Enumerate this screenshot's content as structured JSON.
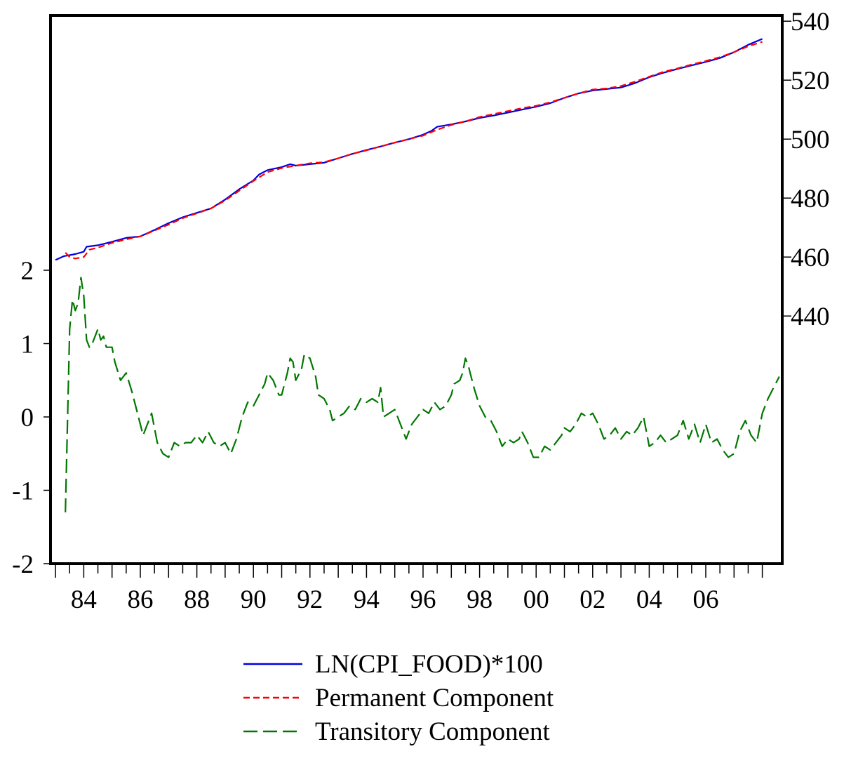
{
  "chart_data": {
    "type": "line",
    "title": "",
    "xlabel": "",
    "ylabel_left": "",
    "ylabel_right": "",
    "x_range": [
      1983.0,
      2008.0
    ],
    "x_ticks": [
      {
        "x": 1984.0,
        "label": "84"
      },
      {
        "x": 1986.0,
        "label": "86"
      },
      {
        "x": 1988.0,
        "label": "88"
      },
      {
        "x": 1990.0,
        "label": "90"
      },
      {
        "x": 1992.0,
        "label": "92"
      },
      {
        "x": 1994.0,
        "label": "94"
      },
      {
        "x": 1996.0,
        "label": "96"
      },
      {
        "x": 1998.0,
        "label": "98"
      },
      {
        "x": 2000.0,
        "label": "00"
      },
      {
        "x": 2002.0,
        "label": "02"
      },
      {
        "x": 2004.0,
        "label": "04"
      },
      {
        "x": 2006.0,
        "label": "06"
      }
    ],
    "y_left": {
      "range": [
        -2,
        5.5
      ],
      "ticks": [
        {
          "y": -2,
          "label": "-2"
        },
        {
          "y": -1,
          "label": "-1"
        },
        {
          "y": 0,
          "label": "0"
        },
        {
          "y": 1,
          "label": "1"
        },
        {
          "y": 2,
          "label": "2"
        }
      ]
    },
    "y_right": {
      "range": [
        410,
        540
      ],
      "ticks": [
        {
          "y": 440,
          "label": "440"
        },
        {
          "y": 460,
          "label": "460"
        },
        {
          "y": 480,
          "label": "480"
        },
        {
          "y": 500,
          "label": "500"
        },
        {
          "y": 520,
          "label": "520"
        },
        {
          "y": 540,
          "label": "540"
        }
      ]
    },
    "grid": false,
    "legend_position": "bottom-center",
    "series": [
      {
        "name": "LN(CPI_FOOD)*100",
        "axis": "right",
        "color": "#0000dd",
        "style": "solid",
        "points": [
          [
            1983.0,
            459.0
          ],
          [
            1983.3,
            460.3
          ],
          [
            1983.7,
            461.0
          ],
          [
            1984.0,
            461.8
          ],
          [
            1984.1,
            463.5
          ],
          [
            1984.5,
            464.0
          ],
          [
            1985.0,
            465.2
          ],
          [
            1985.5,
            466.5
          ],
          [
            1986.0,
            467.0
          ],
          [
            1986.5,
            469.2
          ],
          [
            1987.0,
            471.5
          ],
          [
            1987.5,
            473.5
          ],
          [
            1988.0,
            475.0
          ],
          [
            1988.5,
            476.5
          ],
          [
            1989.0,
            479.5
          ],
          [
            1989.5,
            483.0
          ],
          [
            1990.0,
            486.0
          ],
          [
            1990.2,
            488.0
          ],
          [
            1990.5,
            489.5
          ],
          [
            1991.0,
            490.5
          ],
          [
            1991.3,
            491.5
          ],
          [
            1991.5,
            491.0
          ],
          [
            1992.0,
            491.5
          ],
          [
            1992.5,
            492.0
          ],
          [
            1993.0,
            493.5
          ],
          [
            1993.5,
            495.0
          ],
          [
            1994.0,
            496.3
          ],
          [
            1994.5,
            497.5
          ],
          [
            1995.0,
            498.8
          ],
          [
            1995.5,
            500.0
          ],
          [
            1996.0,
            501.5
          ],
          [
            1996.3,
            502.8
          ],
          [
            1996.5,
            504.2
          ],
          [
            1997.0,
            505.0
          ],
          [
            1997.5,
            506.0
          ],
          [
            1998.0,
            507.2
          ],
          [
            1998.5,
            508.0
          ],
          [
            1999.0,
            509.0
          ],
          [
            1999.5,
            510.0
          ],
          [
            2000.0,
            511.0
          ],
          [
            2000.5,
            512.2
          ],
          [
            2001.0,
            514.0
          ],
          [
            2001.5,
            515.5
          ],
          [
            2002.0,
            516.5
          ],
          [
            2002.5,
            517.0
          ],
          [
            2003.0,
            517.5
          ],
          [
            2003.5,
            519.0
          ],
          [
            2004.0,
            521.0
          ],
          [
            2004.5,
            522.5
          ],
          [
            2005.0,
            523.8
          ],
          [
            2005.5,
            525.0
          ],
          [
            2006.0,
            526.2
          ],
          [
            2006.5,
            527.5
          ],
          [
            2007.0,
            529.5
          ],
          [
            2007.5,
            532.0
          ],
          [
            2008.0,
            534.0
          ]
        ]
      },
      {
        "name": "Permanent Component",
        "axis": "right",
        "color": "#ff0000",
        "style": "dashed",
        "points": [
          [
            1983.35,
            461.5
          ],
          [
            1983.5,
            460.0
          ],
          [
            1983.7,
            459.5
          ],
          [
            1984.0,
            460.0
          ],
          [
            1984.2,
            462.5
          ],
          [
            1984.5,
            463.2
          ],
          [
            1985.0,
            464.8
          ],
          [
            1985.5,
            466.0
          ],
          [
            1986.0,
            467.0
          ],
          [
            1986.5,
            469.0
          ],
          [
            1987.0,
            471.0
          ],
          [
            1987.5,
            473.2
          ],
          [
            1988.0,
            474.8
          ],
          [
            1988.5,
            476.5
          ],
          [
            1989.0,
            479.2
          ],
          [
            1989.5,
            482.5
          ],
          [
            1990.0,
            485.8
          ],
          [
            1990.5,
            488.8
          ],
          [
            1991.0,
            490.2
          ],
          [
            1991.5,
            491.0
          ],
          [
            1992.0,
            491.8
          ],
          [
            1992.5,
            492.2
          ],
          [
            1993.0,
            493.5
          ],
          [
            1993.5,
            495.0
          ],
          [
            1994.0,
            496.2
          ],
          [
            1994.5,
            497.5
          ],
          [
            1995.0,
            498.8
          ],
          [
            1995.5,
            500.0
          ],
          [
            1996.0,
            501.2
          ],
          [
            1996.5,
            503.2
          ],
          [
            1997.0,
            504.8
          ],
          [
            1997.5,
            506.0
          ],
          [
            1998.0,
            507.5
          ],
          [
            1998.5,
            508.5
          ],
          [
            1999.0,
            509.5
          ],
          [
            1999.5,
            510.5
          ],
          [
            2000.0,
            511.3
          ],
          [
            2000.5,
            512.5
          ],
          [
            2001.0,
            514.0
          ],
          [
            2001.5,
            515.5
          ],
          [
            2002.0,
            516.8
          ],
          [
            2002.5,
            517.2
          ],
          [
            2003.0,
            518.0
          ],
          [
            2003.5,
            519.5
          ],
          [
            2004.0,
            521.2
          ],
          [
            2004.5,
            522.8
          ],
          [
            2005.0,
            524.0
          ],
          [
            2005.5,
            525.3
          ],
          [
            2006.0,
            526.5
          ],
          [
            2006.5,
            527.8
          ],
          [
            2007.0,
            529.5
          ],
          [
            2007.5,
            531.5
          ],
          [
            2008.0,
            533.0
          ]
        ]
      },
      {
        "name": "Transitory Component",
        "axis": "left",
        "color": "#007700",
        "style": "longdash",
        "points": [
          [
            1983.35,
            -1.3
          ],
          [
            1983.5,
            1.2
          ],
          [
            1983.6,
            1.6
          ],
          [
            1983.7,
            1.45
          ],
          [
            1983.8,
            1.55
          ],
          [
            1983.9,
            1.9
          ],
          [
            1984.0,
            1.65
          ],
          [
            1984.1,
            1.05
          ],
          [
            1984.2,
            0.95
          ],
          [
            1984.3,
            1.0
          ],
          [
            1984.5,
            1.2
          ],
          [
            1984.6,
            1.05
          ],
          [
            1984.7,
            1.1
          ],
          [
            1984.8,
            0.95
          ],
          [
            1985.0,
            0.95
          ],
          [
            1985.1,
            0.75
          ],
          [
            1985.3,
            0.5
          ],
          [
            1985.5,
            0.6
          ],
          [
            1985.7,
            0.35
          ],
          [
            1985.9,
            0.05
          ],
          [
            1986.1,
            -0.25
          ],
          [
            1986.4,
            0.05
          ],
          [
            1986.6,
            -0.35
          ],
          [
            1986.8,
            -0.5
          ],
          [
            1987.0,
            -0.55
          ],
          [
            1987.2,
            -0.35
          ],
          [
            1987.4,
            -0.4
          ],
          [
            1987.6,
            -0.35
          ],
          [
            1987.8,
            -0.35
          ],
          [
            1988.0,
            -0.25
          ],
          [
            1988.2,
            -0.35
          ],
          [
            1988.4,
            -0.2
          ],
          [
            1988.6,
            -0.35
          ],
          [
            1988.8,
            -0.4
          ],
          [
            1989.0,
            -0.35
          ],
          [
            1989.2,
            -0.5
          ],
          [
            1989.4,
            -0.3
          ],
          [
            1989.6,
            0.0
          ],
          [
            1989.8,
            0.2
          ],
          [
            1990.0,
            0.15
          ],
          [
            1990.2,
            0.3
          ],
          [
            1990.4,
            0.45
          ],
          [
            1990.5,
            0.6
          ],
          [
            1990.7,
            0.5
          ],
          [
            1990.9,
            0.3
          ],
          [
            1991.0,
            0.3
          ],
          [
            1991.2,
            0.6
          ],
          [
            1991.3,
            0.8
          ],
          [
            1991.4,
            0.75
          ],
          [
            1991.5,
            0.5
          ],
          [
            1991.7,
            0.65
          ],
          [
            1991.8,
            0.85
          ],
          [
            1992.0,
            0.8
          ],
          [
            1992.2,
            0.55
          ],
          [
            1992.3,
            0.3
          ],
          [
            1992.5,
            0.25
          ],
          [
            1992.7,
            0.1
          ],
          [
            1992.8,
            -0.05
          ],
          [
            1993.0,
            0.0
          ],
          [
            1993.2,
            0.05
          ],
          [
            1993.4,
            0.15
          ],
          [
            1993.6,
            0.1
          ],
          [
            1993.8,
            0.25
          ],
          [
            1994.0,
            0.2
          ],
          [
            1994.2,
            0.25
          ],
          [
            1994.4,
            0.2
          ],
          [
            1994.5,
            0.4
          ],
          [
            1994.6,
            0.0
          ],
          [
            1994.8,
            0.05
          ],
          [
            1995.0,
            0.1
          ],
          [
            1995.2,
            -0.1
          ],
          [
            1995.4,
            -0.3
          ],
          [
            1995.6,
            -0.1
          ],
          [
            1995.8,
            0.0
          ],
          [
            1996.0,
            0.1
          ],
          [
            1996.2,
            0.05
          ],
          [
            1996.4,
            0.2
          ],
          [
            1996.6,
            0.1
          ],
          [
            1996.8,
            0.15
          ],
          [
            1997.0,
            0.3
          ],
          [
            1997.1,
            0.45
          ],
          [
            1997.3,
            0.5
          ],
          [
            1997.4,
            0.6
          ],
          [
            1997.5,
            0.8
          ],
          [
            1997.6,
            0.7
          ],
          [
            1997.8,
            0.4
          ],
          [
            1998.0,
            0.15
          ],
          [
            1998.2,
            0.0
          ],
          [
            1998.4,
            -0.05
          ],
          [
            1998.6,
            -0.2
          ],
          [
            1998.8,
            -0.4
          ],
          [
            1999.0,
            -0.3
          ],
          [
            1999.2,
            -0.35
          ],
          [
            1999.4,
            -0.3
          ],
          [
            1999.5,
            -0.2
          ],
          [
            1999.7,
            -0.35
          ],
          [
            1999.9,
            -0.55
          ],
          [
            2000.1,
            -0.55
          ],
          [
            2000.3,
            -0.4
          ],
          [
            2000.5,
            -0.45
          ],
          [
            2000.7,
            -0.35
          ],
          [
            2000.9,
            -0.25
          ],
          [
            2001.0,
            -0.15
          ],
          [
            2001.2,
            -0.2
          ],
          [
            2001.4,
            -0.1
          ],
          [
            2001.6,
            0.05
          ],
          [
            2001.8,
            0.0
          ],
          [
            2002.0,
            0.05
          ],
          [
            2002.2,
            -0.1
          ],
          [
            2002.4,
            -0.3
          ],
          [
            2002.6,
            -0.25
          ],
          [
            2002.8,
            -0.15
          ],
          [
            2003.0,
            -0.3
          ],
          [
            2003.2,
            -0.2
          ],
          [
            2003.4,
            -0.25
          ],
          [
            2003.6,
            -0.15
          ],
          [
            2003.8,
            0.0
          ],
          [
            2004.0,
            -0.4
          ],
          [
            2004.2,
            -0.35
          ],
          [
            2004.4,
            -0.25
          ],
          [
            2004.6,
            -0.35
          ],
          [
            2004.8,
            -0.3
          ],
          [
            2005.0,
            -0.25
          ],
          [
            2005.2,
            -0.05
          ],
          [
            2005.4,
            -0.3
          ],
          [
            2005.6,
            -0.1
          ],
          [
            2005.8,
            -0.35
          ],
          [
            2006.0,
            -0.1
          ],
          [
            2006.2,
            -0.35
          ],
          [
            2006.4,
            -0.3
          ],
          [
            2006.6,
            -0.45
          ],
          [
            2006.8,
            -0.55
          ],
          [
            2007.0,
            -0.5
          ],
          [
            2007.2,
            -0.2
          ],
          [
            2007.4,
            -0.05
          ],
          [
            2007.6,
            -0.25
          ],
          [
            2007.8,
            -0.35
          ],
          [
            2008.0,
            0.05
          ],
          [
            2008.2,
            0.25
          ],
          [
            2008.4,
            0.4
          ],
          [
            2008.6,
            0.55
          ],
          [
            2008.8,
            0.55
          ],
          [
            2008.9,
            0.7
          ],
          [
            2009.0,
            0.65
          ]
        ]
      }
    ]
  }
}
